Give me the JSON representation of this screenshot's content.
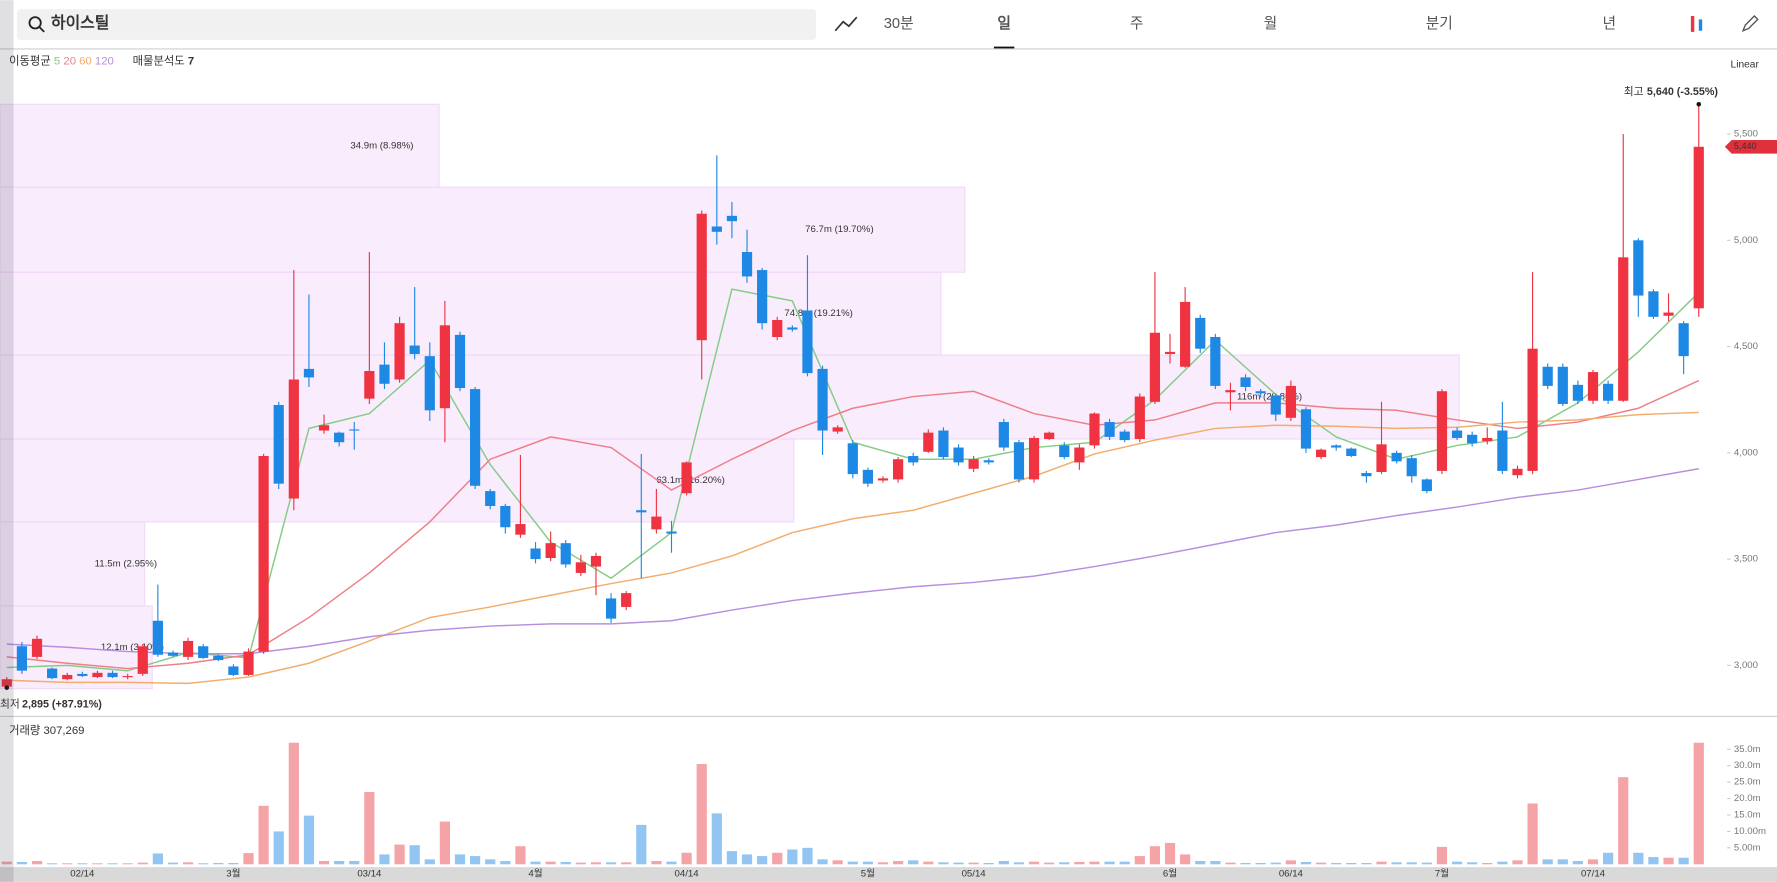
{
  "header": {
    "search": "하이스틸",
    "tabs": [
      "30분",
      "일",
      "주",
      "월",
      "분기",
      "년"
    ],
    "active_tab": 1
  },
  "chart_data": {
    "type": "candlestick",
    "categories": [
      null,
      null,
      null,
      null,
      null,
      "02/14",
      null,
      null,
      null,
      null,
      null,
      null,
      null,
      null,
      null,
      "3월",
      null,
      null,
      null,
      null,
      null,
      null,
      null,
      null,
      "03/14",
      null,
      null,
      null,
      null,
      null,
      null,
      null,
      null,
      null,
      null,
      "4월",
      null,
      null,
      null,
      null,
      null,
      null,
      null,
      null,
      null,
      "04/14",
      null,
      null,
      null,
      null,
      null,
      null,
      null,
      null,
      null,
      null,
      null,
      "5월",
      null,
      null,
      null,
      null,
      null,
      null,
      "05/14",
      null,
      null,
      null,
      null,
      null,
      null,
      null,
      null,
      null,
      null,
      null,
      null,
      "6월",
      null,
      null,
      null,
      null,
      null,
      null,
      null,
      "06/14",
      null,
      null,
      null,
      null,
      null,
      null,
      null,
      null,
      null,
      "7월",
      null,
      null,
      null,
      null,
      null,
      null,
      null,
      null,
      null,
      "07/14",
      null,
      null,
      null,
      null,
      null,
      null,
      null
    ],
    "open": [
      2900,
      3090,
      3040,
      2985,
      2935,
      2960,
      2945,
      2965,
      2945,
      2960,
      3210,
      3060,
      3040,
      3090,
      3045,
      2995,
      2955,
      3065,
      4225,
      3785,
      4395,
      4105,
      4095,
      4110,
      4255,
      4415,
      4345,
      4505,
      4455,
      4210,
      4555,
      4300,
      3820,
      3750,
      3615,
      3550,
      3505,
      3575,
      3435,
      3465,
      3315,
      3275,
      3730,
      3640,
      3630,
      3810,
      4530,
      5065,
      5115,
      4945,
      4860,
      4545,
      4590,
      4670,
      4395,
      4100,
      4045,
      3920,
      3870,
      3875,
      3985,
      4005,
      4105,
      4025,
      3925,
      3965,
      4145,
      4050,
      3875,
      4065,
      4035,
      3955,
      4035,
      4145,
      4100,
      4065,
      4240,
      4465,
      4405,
      4635,
      4545,
      4285,
      4355,
      4290,
      4270,
      4165,
      4205,
      3980,
      4035,
      4020,
      3905,
      3910,
      4000,
      3975,
      3875,
      3915,
      4105,
      4085,
      4055,
      4105,
      3895,
      3915,
      4405,
      4405,
      4320,
      4245,
      4325,
      4245,
      5000,
      4760,
      4645,
      4610,
      4680
    ],
    "high": [
      2945,
      3110,
      3140,
      2990,
      2965,
      2970,
      2975,
      2975,
      2960,
      3100,
      3380,
      3070,
      3130,
      3100,
      3050,
      3005,
      3080,
      3995,
      4240,
      4860,
      4745,
      4180,
      4100,
      4145,
      4945,
      4520,
      4640,
      4780,
      4520,
      4715,
      4570,
      4310,
      3830,
      3760,
      3990,
      3580,
      3630,
      3590,
      3520,
      3530,
      3340,
      3350,
      3995,
      3830,
      3680,
      3960,
      5140,
      5400,
      5180,
      5050,
      4870,
      4640,
      4600,
      4930,
      4410,
      4130,
      4060,
      3930,
      3890,
      3980,
      4000,
      4110,
      4120,
      4040,
      3985,
      3975,
      4160,
      4060,
      4080,
      4100,
      4050,
      4040,
      4190,
      4160,
      4110,
      4280,
      4850,
      4560,
      4780,
      4650,
      4560,
      4330,
      4370,
      4300,
      4280,
      4340,
      4215,
      4020,
      4040,
      4025,
      3915,
      4240,
      4010,
      3990,
      3880,
      4300,
      4120,
      4100,
      4120,
      4240,
      3940,
      4850,
      4420,
      4420,
      4340,
      4390,
      4340,
      5500,
      5010,
      4770,
      4750,
      4620,
      5640
    ],
    "low": [
      2895,
      2960,
      3030,
      2935,
      2930,
      2945,
      2940,
      2940,
      2935,
      2950,
      3040,
      3040,
      3025,
      3030,
      3020,
      2950,
      2950,
      3055,
      3830,
      3730,
      4310,
      4090,
      4030,
      4015,
      4230,
      4300,
      4330,
      4440,
      4150,
      4050,
      4290,
      3830,
      3735,
      3620,
      3600,
      3480,
      3490,
      3460,
      3420,
      3330,
      3200,
      3260,
      3410,
      3620,
      3530,
      3800,
      4345,
      4980,
      5010,
      4800,
      4580,
      4530,
      4570,
      4360,
      3990,
      4090,
      3880,
      3840,
      3860,
      3860,
      3940,
      4000,
      3970,
      3940,
      3910,
      3945,
      4010,
      3860,
      3860,
      4060,
      3970,
      3920,
      4020,
      4060,
      4050,
      4050,
      4230,
      4420,
      4400,
      4470,
      4300,
      4200,
      4290,
      4260,
      4150,
      4150,
      4000,
      3970,
      4010,
      3980,
      3860,
      3900,
      3950,
      3860,
      3810,
      3900,
      4060,
      4030,
      4040,
      3900,
      3880,
      3900,
      4300,
      4220,
      4230,
      4230,
      4230,
      4240,
      4640,
      4630,
      4620,
      4370,
      4640
    ],
    "close": [
      2935,
      2975,
      3125,
      2940,
      2955,
      2950,
      2965,
      2945,
      2950,
      3090,
      3050,
      3045,
      3115,
      3035,
      3025,
      2955,
      3065,
      3985,
      3855,
      4345,
      4355,
      4130,
      4050,
      4105,
      4385,
      4325,
      4610,
      4465,
      4200,
      4600,
      4305,
      3845,
      3750,
      3650,
      3665,
      3500,
      3575,
      3475,
      3485,
      3515,
      3220,
      3340,
      3720,
      3700,
      3620,
      3955,
      5125,
      5040,
      5090,
      4830,
      4610,
      4625,
      4580,
      4375,
      4105,
      4120,
      3900,
      3855,
      3880,
      3970,
      3955,
      4095,
      3980,
      3955,
      3970,
      3955,
      4025,
      3875,
      4070,
      4095,
      3980,
      4025,
      4185,
      4075,
      4060,
      4265,
      4565,
      4475,
      4710,
      4490,
      4315,
      4295,
      4310,
      4280,
      4180,
      4315,
      4020,
      4015,
      4025,
      3985,
      3890,
      4040,
      3960,
      3890,
      3820,
      4290,
      4070,
      4045,
      4070,
      3915,
      3925,
      4490,
      4315,
      4230,
      4245,
      4380,
      4245,
      4920,
      4740,
      4640,
      4660,
      4455,
      5440
    ],
    "up_color": "#ef3340",
    "down_color": "#1e88e5",
    "ylim": [
      2760,
      5890
    ],
    "yticks": [
      {
        "value": 3000,
        "label": "3,000"
      },
      {
        "value": 3500,
        "label": "3,500"
      },
      {
        "value": 4000,
        "label": "4,000"
      },
      {
        "value": 4500,
        "label": "4,500"
      },
      {
        "value": 5000,
        "label": "5,000"
      },
      {
        "value": 5500,
        "label": "5,500"
      }
    ],
    "grid": false,
    "scale_label": "Linear",
    "ma_label": "이동평균",
    "ma": [
      {
        "name": "5",
        "color": "#86cc86",
        "x": [
          0,
          4,
          8,
          12,
          16,
          20,
          24,
          28,
          32,
          36,
          40,
          44,
          48,
          52,
          56,
          60,
          64,
          68,
          72,
          76,
          80,
          84,
          88,
          92,
          96,
          100,
          104,
          108,
          112
        ],
        "values": [
          2990,
          3000,
          2975,
          3060,
          3035,
          4115,
          4185,
          4435,
          3945,
          3580,
          3410,
          3625,
          4770,
          4715,
          4050,
          3970,
          3970,
          4025,
          4050,
          4250,
          4530,
          4275,
          4075,
          3970,
          4035,
          4075,
          4235,
          4475,
          4755
        ]
      },
      {
        "name": "20",
        "color": "#ee7f86",
        "x": [
          0,
          4,
          8,
          12,
          16,
          20,
          24,
          28,
          32,
          36,
          40,
          44,
          48,
          52,
          56,
          60,
          64,
          68,
          72,
          76,
          80,
          84,
          88,
          92,
          96,
          100,
          104,
          108,
          112
        ],
        "values": [
          3040,
          3010,
          2985,
          3010,
          3050,
          3225,
          3435,
          3675,
          3970,
          4075,
          4025,
          3825,
          3970,
          4105,
          4210,
          4265,
          4290,
          4185,
          4130,
          4155,
          4235,
          4235,
          4210,
          4200,
          4155,
          4115,
          4145,
          4210,
          4340
        ]
      },
      {
        "name": "60",
        "color": "#f3ad6c",
        "x": [
          0,
          4,
          8,
          12,
          16,
          20,
          24,
          28,
          32,
          36,
          40,
          44,
          48,
          52,
          56,
          60,
          64,
          68,
          72,
          76,
          80,
          84,
          88,
          92,
          96,
          100,
          104,
          108,
          112
        ],
        "values": [
          2930,
          2920,
          2920,
          2915,
          2945,
          3010,
          3115,
          3225,
          3275,
          3330,
          3385,
          3435,
          3515,
          3625,
          3690,
          3730,
          3810,
          3890,
          3995,
          4060,
          4115,
          4130,
          4125,
          4115,
          4120,
          4145,
          4155,
          4180,
          4190
        ]
      },
      {
        "name": "120",
        "color": "#b88ee0",
        "x": [
          0,
          4,
          8,
          12,
          16,
          20,
          24,
          28,
          32,
          36,
          40,
          44,
          48,
          52,
          56,
          60,
          64,
          68,
          72,
          76,
          80,
          84,
          88,
          92,
          96,
          100,
          104,
          108,
          112
        ],
        "values": [
          3100,
          3085,
          3065,
          3055,
          3055,
          3090,
          3135,
          3165,
          3185,
          3195,
          3195,
          3210,
          3260,
          3305,
          3340,
          3370,
          3390,
          3420,
          3465,
          3515,
          3570,
          3625,
          3660,
          3705,
          3745,
          3790,
          3825,
          3875,
          3925
        ]
      }
    ],
    "profile_label": "매물분석도",
    "profile_count": 7,
    "profile": [
      {
        "lo": 5250,
        "hi": 5640,
        "value": 34.9,
        "value_label": "34.9m (8.98%)"
      },
      {
        "lo": 4850,
        "hi": 5250,
        "value": 76.7,
        "value_label": "76.7m (19.70%)"
      },
      {
        "lo": 4460,
        "hi": 4850,
        "value": 74.8,
        "value_label": "74.8m (19.21%)"
      },
      {
        "lo": 4065,
        "hi": 4460,
        "value": 116,
        "value_label": "116m (29.86%)"
      },
      {
        "lo": 3675,
        "hi": 4065,
        "value": 63.1,
        "value_label": "63.1m (16.20%)"
      },
      {
        "lo": 3280,
        "hi": 3675,
        "value": 11.5,
        "value_label": "11.5m (2.95%)"
      },
      {
        "lo": 2890,
        "hi": 3280,
        "value": 12.1,
        "value_label": "12.1m (3.10%)"
      }
    ],
    "high_mark": {
      "x": 112,
      "label": "최고",
      "value": 5640,
      "value_label": "5,640 (-3.55%)"
    },
    "low_mark": {
      "x": 0,
      "label": "최저",
      "value": 2895,
      "value_label": "2,895 (+87.91%)"
    },
    "last": {
      "value": 5440,
      "label": "5,440"
    },
    "volume": {
      "label": "거래량",
      "value": 307269,
      "value_label": "307,269",
      "values": [
        0.8,
        0.7,
        1.0,
        0.3,
        0.3,
        0.3,
        0.3,
        0.3,
        0.3,
        0.5,
        3.3,
        0.5,
        0.6,
        0.3,
        0.4,
        0.4,
        3.4,
        17.8,
        10,
        37,
        14.8,
        1.0,
        1.0,
        1.0,
        22,
        3,
        6,
        5.8,
        1.5,
        13,
        3,
        2.5,
        1.5,
        1.0,
        5.5,
        0.8,
        0.8,
        0.7,
        0.5,
        0.6,
        0.6,
        0.6,
        12,
        1,
        0.8,
        3.5,
        30.5,
        15.5,
        4,
        3,
        2.5,
        3.5,
        4.5,
        5,
        1.5,
        1.2,
        0.8,
        0.8,
        0.6,
        1.0,
        1.2,
        0.8,
        0.6,
        0.5,
        0.5,
        0.4,
        1.0,
        0.6,
        0.8,
        0.5,
        0.6,
        0.7,
        0.8,
        0.8,
        0.8,
        2.5,
        5.5,
        6.5,
        3,
        1.0,
        1.0,
        0.5,
        0.4,
        0.4,
        0.5,
        1.2,
        0.7,
        0.5,
        0.4,
        0.4,
        0.4,
        0.8,
        0.6,
        0.6,
        0.5,
        5.3,
        0.8,
        0.6,
        0.4,
        0.8,
        1.2,
        18.5,
        1.5,
        1.5,
        1.0,
        1.5,
        3.5,
        26.5,
        3.5,
        2.2,
        2.0,
        2.0,
        37
      ],
      "up_color": "#f4a3a7",
      "down_color": "#92c5f2",
      "ylim": [
        0,
        38.8
      ],
      "yticks": [
        {
          "value": 5,
          "label": "5.00m"
        },
        {
          "value": 10,
          "label": "10.00m"
        },
        {
          "value": 15,
          "label": "15.0m"
        },
        {
          "value": 20,
          "label": "20.0m"
        },
        {
          "value": 25,
          "label": "25.0m"
        },
        {
          "value": 30,
          "label": "30.0m"
        },
        {
          "value": 35,
          "label": "35.0m"
        }
      ]
    }
  }
}
